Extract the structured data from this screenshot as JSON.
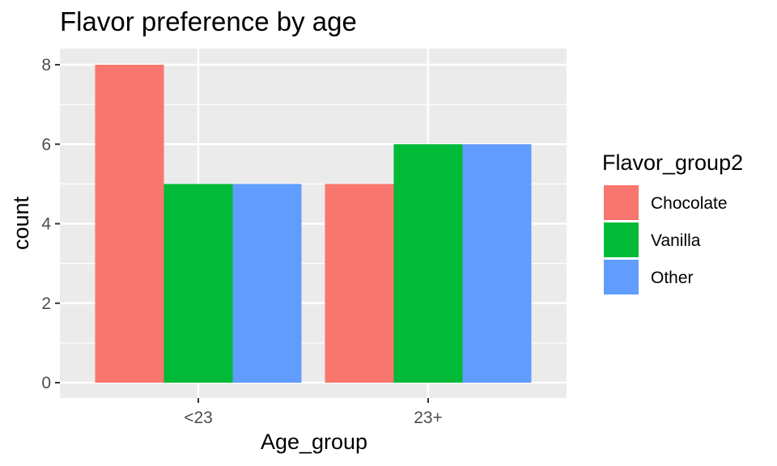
{
  "chart_data": {
    "type": "bar",
    "title": "Flavor preference by age",
    "xlabel": "Age_group",
    "ylabel": "count",
    "categories": [
      "<23",
      "23+"
    ],
    "series": [
      {
        "name": "Chocolate",
        "values": [
          8,
          5
        ],
        "color": "#F8766D"
      },
      {
        "name": "Vanilla",
        "values": [
          5,
          6
        ],
        "color": "#00BA38"
      },
      {
        "name": "Other",
        "values": [
          5,
          6
        ],
        "color": "#619CFF"
      }
    ],
    "ylim": [
      0,
      8.4
    ],
    "yticks": [
      0,
      2,
      4,
      6,
      8
    ],
    "grid": true,
    "legend_title": "Flavor_group2",
    "legend_position": "right",
    "panel_background": "#EBEBEB",
    "grid_color": "#FFFFFF"
  }
}
